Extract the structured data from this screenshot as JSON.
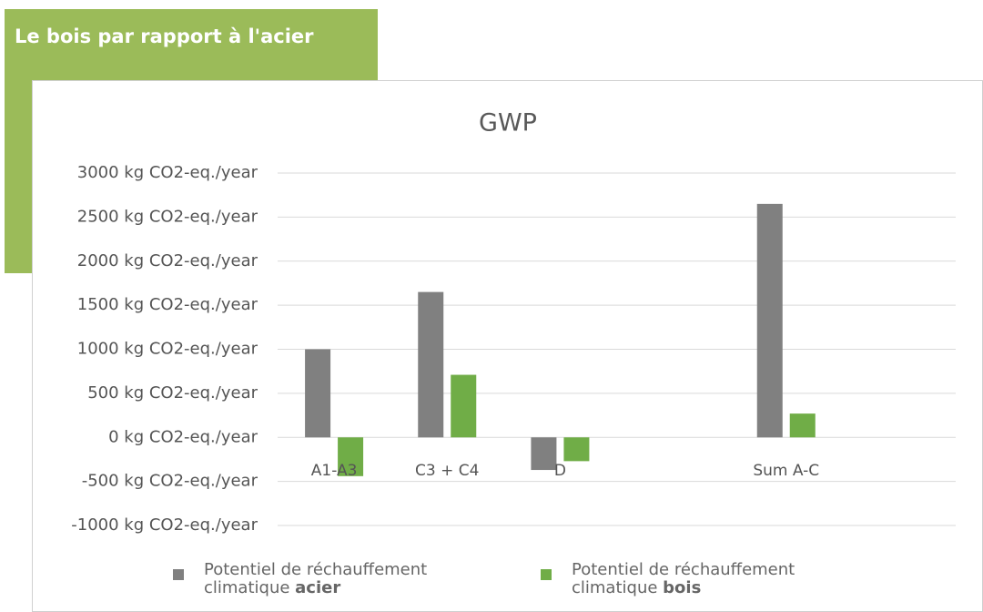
{
  "page": {
    "heading": "Le bois par rapport à l'acier"
  },
  "chart_data": {
    "type": "bar",
    "title": "GWP",
    "categories": [
      "A1-A3",
      "C3 + C4",
      "D",
      null,
      "Sum A-C",
      null
    ],
    "series": [
      {
        "name": "Potentiel de réchauffement climatique acier",
        "color": "#808080",
        "values": [
          1000,
          1650,
          -370,
          null,
          2650,
          null
        ]
      },
      {
        "name": "Potentiel de réchauffement climatique bois",
        "color": "#70ad47",
        "values": [
          -440,
          710,
          -270,
          null,
          270,
          null
        ]
      }
    ],
    "ylim": [
      -1000,
      3000
    ],
    "yticks": [
      {
        "value": -1000,
        "label": "-1000 kg CO2-eq./year"
      },
      {
        "value": -500,
        "label": "-500 kg CO2-eq./year"
      },
      {
        "value": 0,
        "label": "0 kg CO2-eq./year"
      },
      {
        "value": 500,
        "label": "500 kg CO2-eq./year"
      },
      {
        "value": 1000,
        "label": "1000 kg CO2-eq./year"
      },
      {
        "value": 1500,
        "label": "1500 kg CO2-eq./year"
      },
      {
        "value": 2000,
        "label": "2000 kg CO2-eq./year"
      },
      {
        "value": 2500,
        "label": "2500 kg CO2-eq./year"
      },
      {
        "value": 3000,
        "label": "3000 kg CO2-eq./year"
      }
    ],
    "grid": true,
    "legend": "bottom"
  }
}
